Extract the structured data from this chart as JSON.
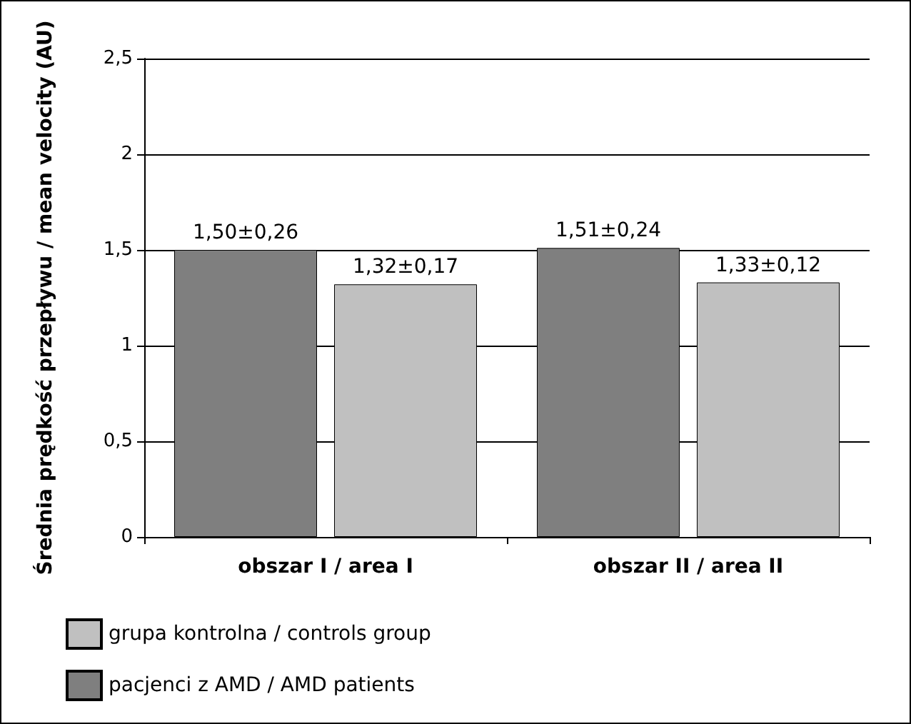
{
  "chart_data": {
    "type": "bar",
    "ylabel": "Średnia prędkość przepływu / mean velocity (AU)",
    "categories": [
      "obszar I / area I",
      "obszar II / area II"
    ],
    "series": [
      {
        "name": "pacjenci z AMD / AMD patients",
        "color": "#7f7f7f",
        "values": [
          1.5,
          1.51
        ],
        "value_labels": [
          "1,50±0,26",
          "1,51±0,24"
        ]
      },
      {
        "name": "grupa kontrolna / controls group",
        "color": "#c0c0c0",
        "values": [
          1.32,
          1.33
        ],
        "value_labels": [
          "1,32±0,17",
          "1,33±0,12"
        ]
      }
    ],
    "ylim": [
      0,
      2.5
    ],
    "yticks": [
      0,
      {
        "value": 0.5,
        "label": "0,5"
      },
      1,
      {
        "value": 1.5,
        "label": "1,5"
      },
      2,
      {
        "value": 2.5,
        "label": "2,5"
      }
    ],
    "grid": "y",
    "legend": "bottom"
  }
}
